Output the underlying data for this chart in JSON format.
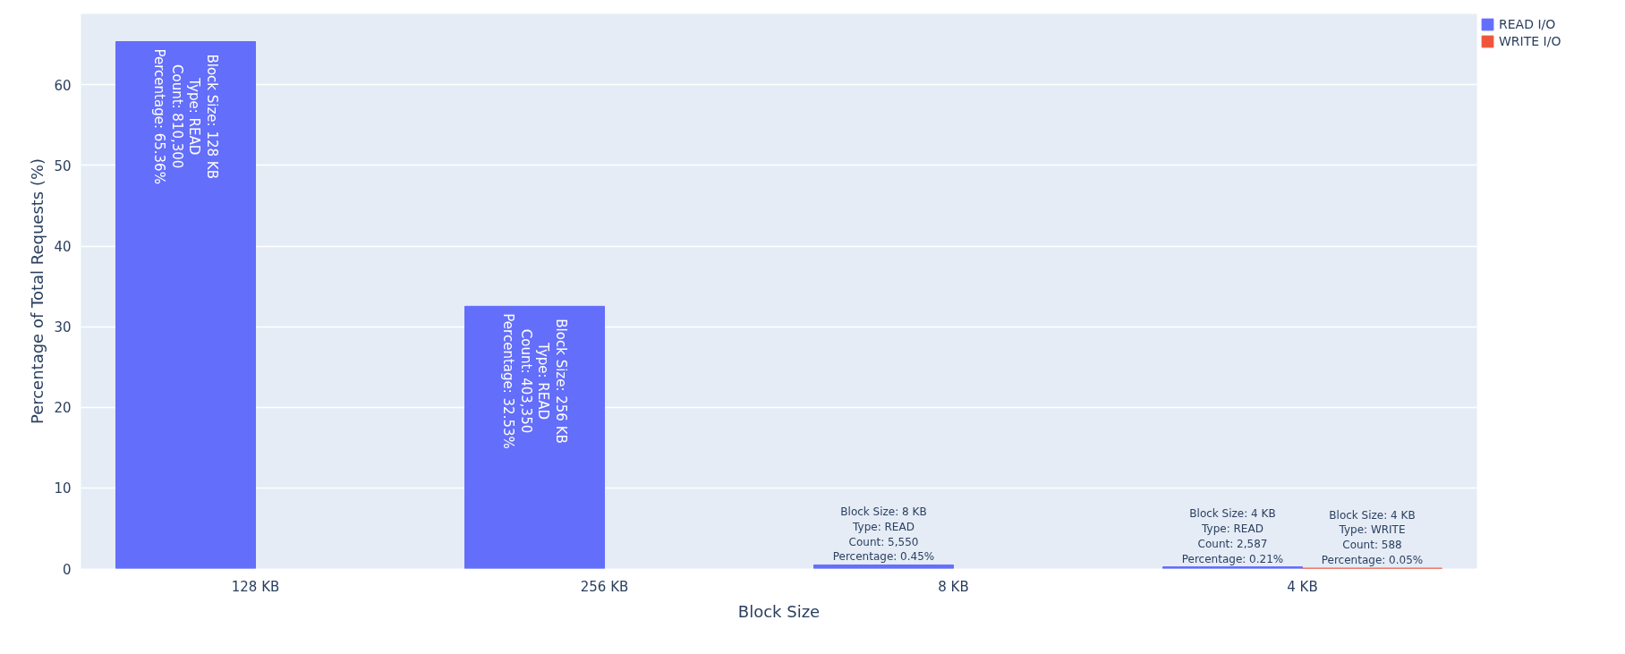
{
  "chart_data": {
    "type": "bar",
    "xlabel": "Block Size",
    "ylabel": "Percentage of Total Requests (%)",
    "categories": [
      "128 KB",
      "256 KB",
      "8 KB",
      "4 KB"
    ],
    "series": [
      {
        "name": "READ I/O",
        "color": "#636efa",
        "values": [
          65.36,
          32.53,
          0.45,
          0.21
        ],
        "value_labels": [
          "Block Size: 128 KB\nType: READ\nCount: 810,300\nPercentage: 65.36%",
          "Block Size: 256 KB\nType: READ\nCount: 403,350\nPercentage: 32.53%",
          "Block Size: 8 KB\nType: READ\nCount: 5,550\nPercentage: 0.45%",
          "Block Size: 4 KB\nType: READ\nCount: 2,587\nPercentage: 0.21%"
        ]
      },
      {
        "name": "WRITE I/O",
        "color": "#ef553b",
        "values": [
          null,
          null,
          null,
          0.05
        ],
        "value_labels": [
          null,
          null,
          null,
          "Block Size: 4 KB\nType: WRITE\nCount: 588\nPercentage: 0.05%"
        ]
      }
    ],
    "ylim": [
      0,
      68.8
    ],
    "yticks": [
      0,
      10,
      20,
      30,
      40,
      50,
      60
    ],
    "grid": "y",
    "legend": "top right"
  }
}
